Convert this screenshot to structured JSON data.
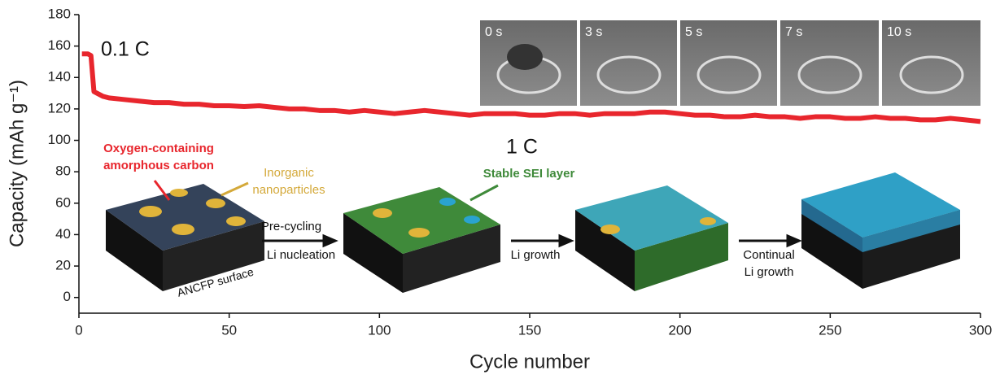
{
  "chart_data": {
    "type": "line",
    "xlabel": "Cycle number",
    "ylabel": "Capacity (mAh g⁻¹)",
    "xlim": [
      0,
      300
    ],
    "xticks": [
      0,
      50,
      100,
      150,
      200,
      250,
      300
    ],
    "ylim": [
      -10,
      180
    ],
    "yticks": [
      0,
      20,
      40,
      60,
      80,
      100,
      120,
      140,
      160,
      180
    ],
    "x": [
      1,
      2,
      3,
      4,
      5,
      6,
      8,
      10,
      15,
      20,
      25,
      30,
      35,
      40,
      45,
      50,
      55,
      60,
      65,
      70,
      75,
      80,
      85,
      90,
      95,
      100,
      105,
      110,
      115,
      120,
      125,
      130,
      135,
      140,
      145,
      150,
      155,
      160,
      165,
      170,
      175,
      180,
      185,
      190,
      195,
      200,
      205,
      210,
      215,
      220,
      225,
      230,
      235,
      240,
      245,
      250,
      255,
      260,
      265,
      270,
      275,
      280,
      285,
      290,
      295,
      300
    ],
    "series": [
      {
        "color": "#e8262d",
        "values": [
          155,
          155,
          155,
          154,
          131,
          130,
          128,
          127,
          126,
          125,
          124,
          124,
          123,
          123,
          122,
          122,
          121.5,
          122,
          121,
          120,
          120,
          119,
          119,
          118,
          119,
          118,
          117,
          118,
          119,
          118,
          117,
          116,
          117,
          117,
          117,
          116,
          116,
          117,
          117,
          116,
          117,
          117,
          117,
          118,
          118,
          117,
          116,
          116,
          115,
          115,
          116,
          115,
          115,
          114,
          115,
          115,
          114,
          114,
          115,
          114,
          114,
          113,
          113,
          114,
          113,
          112
        ]
      }
    ],
    "rate_labels": [
      "0.1 C",
      "1 C"
    ],
    "photo_labels": [
      "0 s",
      "3 s",
      "5 s",
      "7 s",
      "10 s"
    ],
    "schematic_labels": {
      "carbon": [
        "Oxygen-containing",
        "amorphous carbon"
      ],
      "nanoparticles": [
        "Inorganic",
        "nanoparticles"
      ],
      "sei": "Stable SEI layer",
      "surface": "ANCFP surface",
      "step1": [
        "Pre-cycling",
        "Li nucleation"
      ],
      "step2": "Li growth",
      "step3": [
        "Continual",
        "Li growth"
      ]
    }
  }
}
